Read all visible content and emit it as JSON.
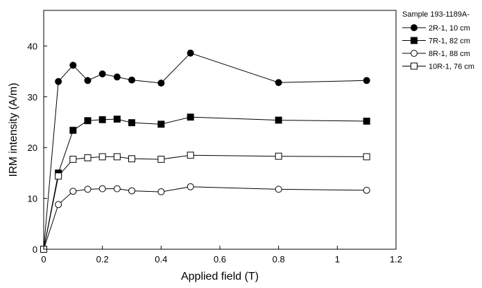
{
  "chart_data": {
    "type": "line",
    "title": "",
    "xlabel": "Applied field (T)",
    "ylabel": "IRM intensity (A/m)",
    "xlim": [
      0,
      1.2
    ],
    "ylim": [
      0,
      47
    ],
    "x_ticks": [
      "0",
      "0.2",
      "0.4",
      "0.6",
      "0.8",
      "1",
      "1.2"
    ],
    "y_ticks": [
      "0",
      "10",
      "20",
      "30",
      "40"
    ],
    "x_tick_values": [
      0,
      0.2,
      0.4,
      0.6,
      0.8,
      1.0,
      1.2
    ],
    "y_tick_values": [
      0,
      10,
      20,
      30,
      40
    ],
    "grid": false,
    "legend_position": "right-outside-top",
    "legend_title": "Sample 193-1189A-",
    "series": [
      {
        "name": "2R-1, 10 cm",
        "marker": "circle-filled",
        "points": [
          [
            0,
            0
          ],
          [
            0.05,
            33.0
          ],
          [
            0.1,
            36.2
          ],
          [
            0.15,
            33.2
          ],
          [
            0.2,
            34.5
          ],
          [
            0.25,
            33.9
          ],
          [
            0.3,
            33.3
          ],
          [
            0.4,
            32.7
          ],
          [
            0.5,
            38.6
          ],
          [
            0.8,
            32.8
          ],
          [
            1.1,
            33.2
          ]
        ]
      },
      {
        "name": "7R-1, 82 cm",
        "marker": "square-filled",
        "points": [
          [
            0,
            0
          ],
          [
            0.05,
            15.0
          ],
          [
            0.1,
            23.4
          ],
          [
            0.15,
            25.3
          ],
          [
            0.2,
            25.5
          ],
          [
            0.25,
            25.6
          ],
          [
            0.3,
            24.9
          ],
          [
            0.4,
            24.6
          ],
          [
            0.5,
            26.0
          ],
          [
            0.8,
            25.4
          ],
          [
            1.1,
            25.2
          ]
        ]
      },
      {
        "name": "8R-1, 88 cm",
        "marker": "circle-open",
        "points": [
          [
            0,
            0
          ],
          [
            0.05,
            8.8
          ],
          [
            0.1,
            11.4
          ],
          [
            0.15,
            11.8
          ],
          [
            0.2,
            11.9
          ],
          [
            0.25,
            11.9
          ],
          [
            0.3,
            11.5
          ],
          [
            0.4,
            11.3
          ],
          [
            0.5,
            12.3
          ],
          [
            0.8,
            11.8
          ],
          [
            1.1,
            11.6
          ]
        ]
      },
      {
        "name": "10R-1, 76 cm",
        "marker": "square-open",
        "points": [
          [
            0,
            0
          ],
          [
            0.05,
            14.4
          ],
          [
            0.1,
            17.7
          ],
          [
            0.15,
            18.0
          ],
          [
            0.2,
            18.2
          ],
          [
            0.25,
            18.2
          ],
          [
            0.3,
            17.8
          ],
          [
            0.4,
            17.7
          ],
          [
            0.5,
            18.5
          ],
          [
            0.8,
            18.3
          ],
          [
            1.1,
            18.2
          ]
        ]
      }
    ]
  }
}
